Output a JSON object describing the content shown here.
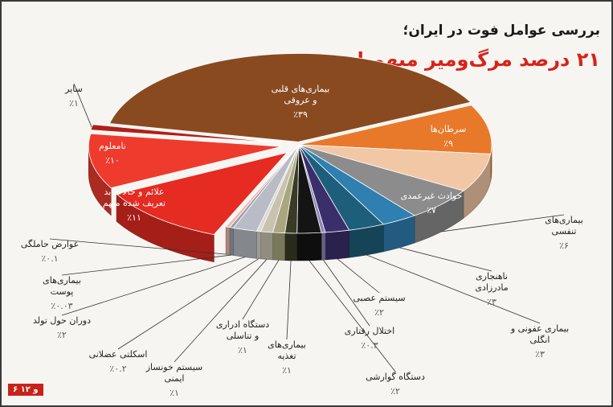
{
  "title": "بررسی عوامل فوت در ایران؛",
  "subtitle": "۲۱ درصد مرگ‌ومیر مبهم است",
  "page_tag": "۶ و ۱۲",
  "chart_data": {
    "type": "pie",
    "title": "بررسی عوامل فوت در ایران؛",
    "subtitle": "۲۱ درصد مرگ‌ومیر مبهم است",
    "unit": "%",
    "slices": [
      {
        "label": "بیماری‌های قلبی و عروقی",
        "value": 39,
        "value_text": "٪۳۹",
        "color": "#8a4a20"
      },
      {
        "label": "سرطان‌ها",
        "value": 9,
        "value_text": "٪۹",
        "color": "#e9792a"
      },
      {
        "label": "حوادث غیرعمدی",
        "value": 7,
        "value_text": "٪۷",
        "color": "#f2c7a5"
      },
      {
        "label": "بیماری‌های تنفسی",
        "value": 6,
        "value_text": "٪۶",
        "color": "#8c8c8c"
      },
      {
        "label": "ناهنجاری مادرزادی",
        "value": 3,
        "value_text": "٪۳",
        "color": "#2f7fb0"
      },
      {
        "label": "بیماری عفونی و انگلی",
        "value": 3,
        "value_text": "٪۳",
        "color": "#1d5e7a"
      },
      {
        "label": "سیستم عصبی",
        "value": 2,
        "value_text": "٪۲",
        "color": "#3b2f6b"
      },
      {
        "label": "اختلال رفتاری",
        "value": 0.3,
        "value_text": "٪۰.۳",
        "color": "#8d88b5"
      },
      {
        "label": "دستگاه گوارشی",
        "value": 2,
        "value_text": "٪۲",
        "color": "#141414"
      },
      {
        "label": "بیماری‌های تغذیه",
        "value": 1,
        "value_text": "٪۱",
        "color": "#3a3a26"
      },
      {
        "label": "دستگاه ادراری و تناسلی",
        "value": 1,
        "value_text": "٪۱",
        "color": "#a9a77f"
      },
      {
        "label": "سیستم خونساز ایمنی",
        "value": 1,
        "value_text": "٪۱",
        "color": "#c8c2b0"
      },
      {
        "label": "اسکلتی عضلانی",
        "value": 0.2,
        "value_text": "٪۰.۲",
        "color": "#dad8d0"
      },
      {
        "label": "دوران حول تولد",
        "value": 2,
        "value_text": "٪۲",
        "color": "#b9bcc6"
      },
      {
        "label": "بیماری‌های پوست",
        "value": 0.03,
        "value_text": "٪۰.۰۳",
        "color": "#9aa0ad"
      },
      {
        "label": "عوارض حاملگی",
        "value": 0.1,
        "value_text": "٪۰.۱",
        "color": "#f0b8b0"
      },
      {
        "label": "علائم و حالات بد تعریف شده مبهم",
        "value": 11,
        "value_text": "٪۱۱",
        "color": "#e52b22"
      },
      {
        "label": "نامعلوم",
        "value": 10,
        "value_text": "٪۱۰",
        "color": "#ee3b2e"
      },
      {
        "label": "سایر",
        "value": 1,
        "value_text": "٪۱",
        "color": "#b01f18"
      }
    ]
  }
}
